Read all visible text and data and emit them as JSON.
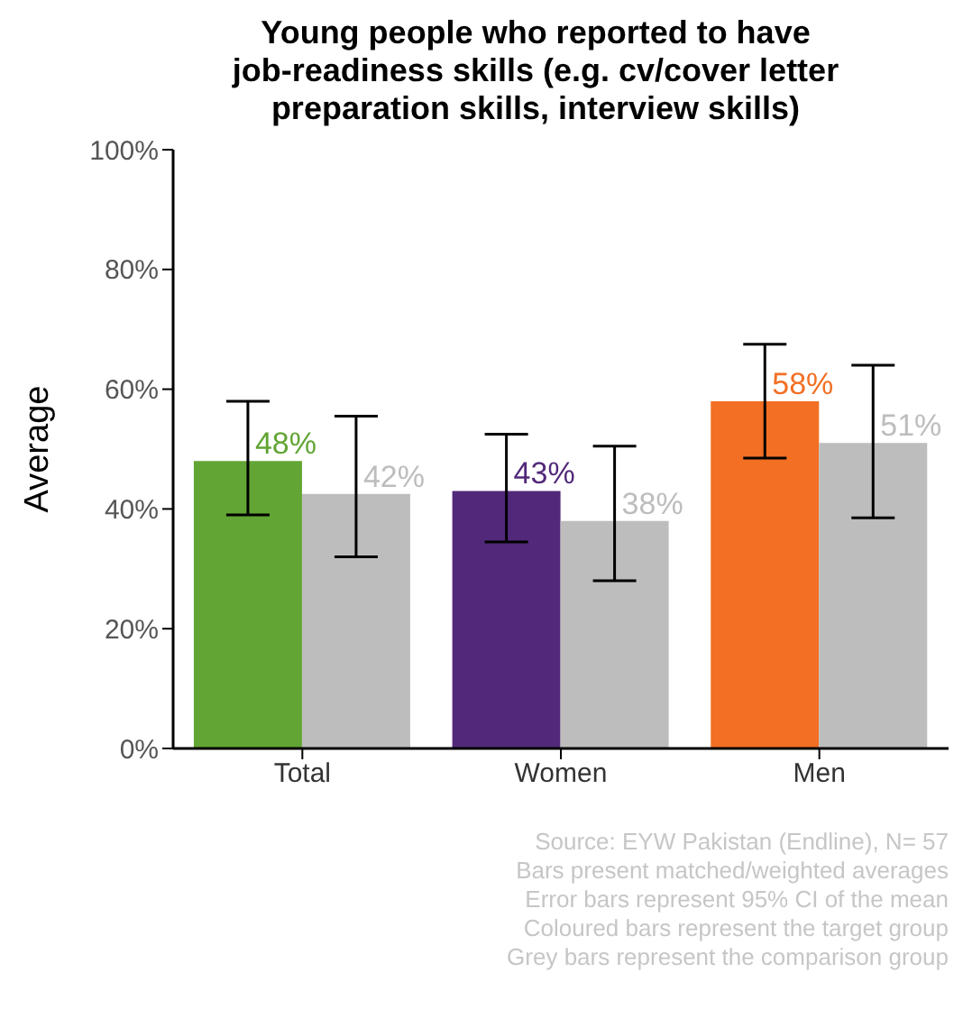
{
  "chart_data": {
    "type": "bar",
    "title": "Young people who reported to have\njob-readiness skills (e.g. cv/cover letter\npreparation skills, interview skills)",
    "ylabel": "Average",
    "categories": [
      "Total",
      "Women",
      "Men"
    ],
    "series": [
      {
        "colors": [
          "#62a534",
          "#52297a",
          "#f26f23"
        ],
        "values": [
          48,
          43,
          58
        ],
        "errors": [
          [
            39,
            58
          ],
          [
            34.5,
            52.5
          ],
          [
            48.5,
            67.5
          ]
        ],
        "value_labels": [
          "48%",
          "43%",
          "58%"
        ]
      },
      {
        "color": "#bdbdbd",
        "values": [
          42.5,
          38,
          51
        ],
        "errors": [
          [
            32,
            55.5
          ],
          [
            28,
            50.5
          ],
          [
            38.5,
            64
          ]
        ],
        "value_labels": [
          "42%",
          "38%",
          "51%"
        ]
      }
    ],
    "ylim": [
      0,
      100
    ],
    "yticks": [
      {
        "value": 0,
        "label": "0%"
      },
      {
        "value": 20,
        "label": "20%"
      },
      {
        "value": 40,
        "label": "40%"
      },
      {
        "value": 60,
        "label": "60%"
      },
      {
        "value": 80,
        "label": "80%"
      },
      {
        "value": 100,
        "label": "100%"
      }
    ],
    "annotations": [
      "Source: EYW Pakistan (Endline), N= 57",
      "Bars present matched/weighted averages",
      "Error bars represent 95% CI of the mean",
      "Coloured bars represent the target group",
      "Grey bars represent the comparison group"
    ]
  }
}
